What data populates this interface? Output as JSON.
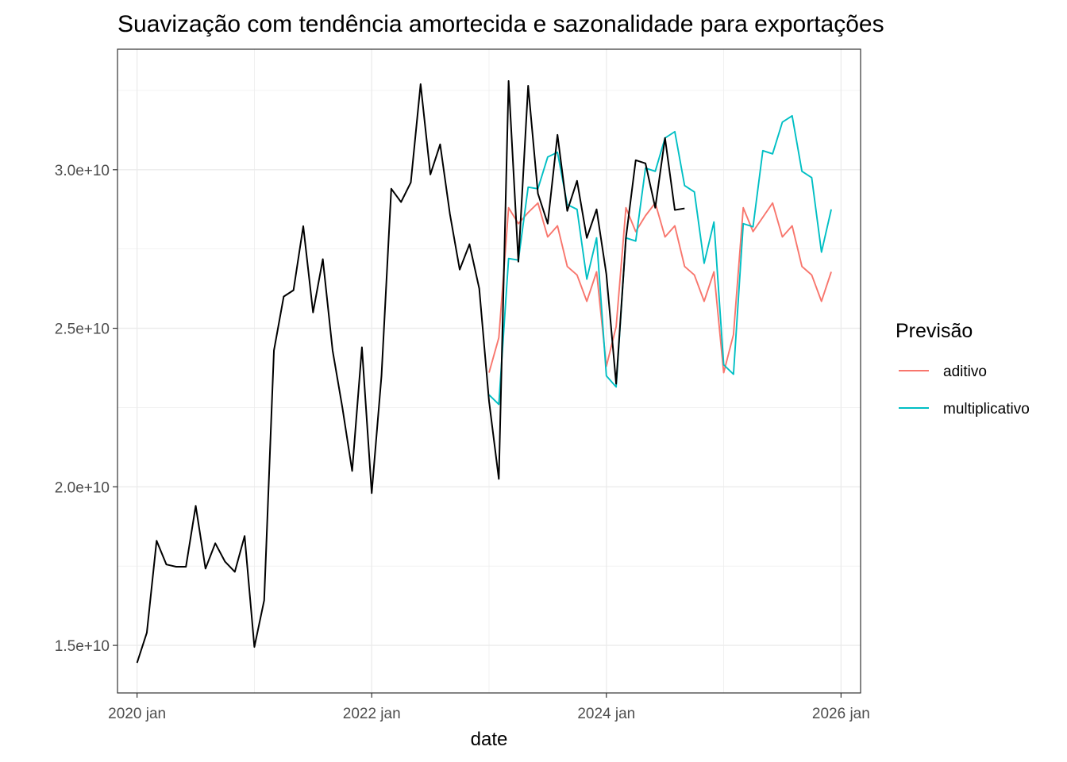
{
  "chart_data": {
    "type": "line",
    "title": "Suavização com tendência amortecida e sazonalidade para exportações",
    "xlabel": "date",
    "ylabel": "",
    "x_ticks": [
      "2020 jan",
      "2022 jan",
      "2024 jan",
      "2026 jan"
    ],
    "y_ticks": [
      "1.5e+10",
      "2.0e+10",
      "2.5e+10",
      "3.0e+10"
    ],
    "y_tick_values": [
      15000000000,
      20000000000,
      25000000000,
      30000000000
    ],
    "xlim": [
      "2019-11",
      "2026-03"
    ],
    "ylim": [
      13500000000,
      33800000000
    ],
    "grid": true,
    "legend": {
      "title": "Previsão",
      "position": "right",
      "entries": [
        "aditivo",
        "multiplicativo"
      ]
    },
    "colors": {
      "observed": "#000000",
      "aditivo": "#F8766D",
      "multiplicativo": "#00BFC4"
    },
    "series": [
      {
        "start": "2020-01",
        "color": "#000000",
        "values": [
          14450000000,
          15400000000,
          18300000000,
          17550000000,
          17480000000,
          17480000000,
          19400000000,
          17420000000,
          18220000000,
          17640000000,
          17320000000,
          18450000000,
          14950000000,
          16420000000,
          24300000000,
          26000000000,
          26200000000,
          28220000000,
          25500000000,
          27180000000,
          24300000000,
          22500000000,
          20500000000,
          24400000000,
          19800000000,
          23500000000,
          29400000000,
          28980000000,
          29600000000,
          32700000000,
          29850000000,
          30800000000,
          28600000000,
          26850000000,
          27650000000,
          26250000000,
          22700000000,
          20250000000,
          32800000000,
          27100000000,
          32650000000,
          29250000000,
          28300000000,
          31100000000,
          28700000000,
          29650000000,
          27850000000,
          28750000000,
          26700000000,
          23250000000,
          27850000000,
          30300000000,
          30200000000,
          28800000000,
          31000000000,
          28730000000,
          28780000000
        ]
      },
      {
        "name": "aditivo",
        "start": "2023-01",
        "color": "#F8766D",
        "values": [
          23600000000,
          24700000000,
          28800000000,
          28300000000,
          28650000000,
          28950000000,
          27880000000,
          28230000000,
          26950000000,
          26680000000,
          25850000000,
          26780000000,
          23800000000,
          25050000000,
          28800000000,
          28050000000,
          28550000000,
          28950000000,
          27880000000,
          28230000000,
          26950000000,
          26680000000,
          25850000000,
          26780000000,
          23600000000,
          24800000000,
          28800000000,
          28050000000,
          28500000000,
          28950000000,
          27880000000,
          28230000000,
          26950000000,
          26680000000,
          25850000000,
          26780000000
        ]
      },
      {
        "name": "multiplicativo",
        "start": "2023-01",
        "color": "#00BFC4",
        "values": [
          22900000000,
          22600000000,
          27200000000,
          27150000000,
          29450000000,
          29400000000,
          30400000000,
          30550000000,
          28900000000,
          28750000000,
          26550000000,
          27850000000,
          23500000000,
          23150000000,
          27850000000,
          27750000000,
          30050000000,
          29950000000,
          31000000000,
          31200000000,
          29500000000,
          29300000000,
          27050000000,
          28350000000,
          23850000000,
          23550000000,
          28300000000,
          28200000000,
          30600000000,
          30500000000,
          31500000000,
          31700000000,
          29950000000,
          29750000000,
          27400000000,
          28750000000
        ]
      }
    ]
  }
}
